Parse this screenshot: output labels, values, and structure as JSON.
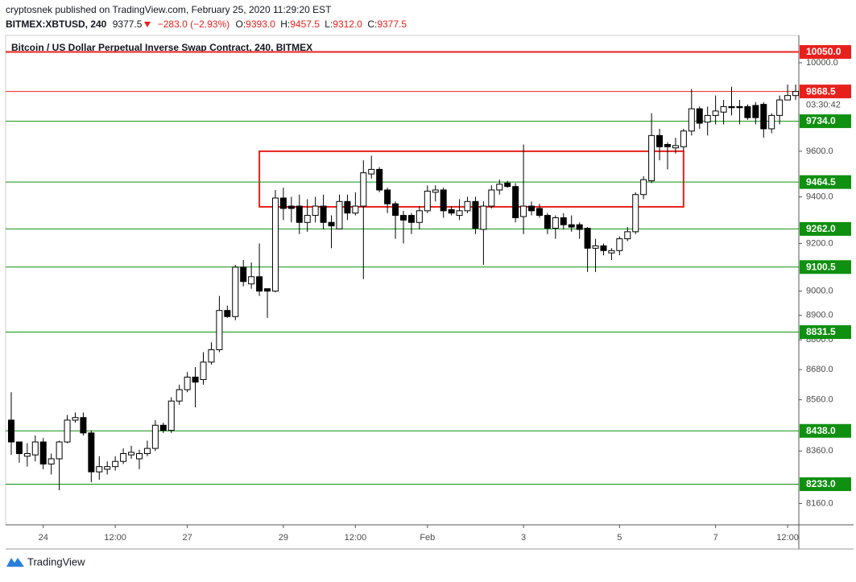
{
  "header": {
    "author_line": "cryptosnek published on TradingView.com, February 25, 2020 11:29:20 EST",
    "symbol": "BITMEX:XBTUSD, 240",
    "last": "9377.5",
    "change": "−283.0 (−2.93%)",
    "ohlc": [
      {
        "label": "O:",
        "value": "9393.0"
      },
      {
        "label": "H:",
        "value": "9457.5"
      },
      {
        "label": "L:",
        "value": "9312.0"
      },
      {
        "label": "C:",
        "value": "9377.5"
      }
    ]
  },
  "chart_data": {
    "type": "candlestick",
    "title": "Bitcoin / US Dollar Perpetual Inverse Swap Contract, 240, BITMEX",
    "log_scale": true,
    "grid": false,
    "up_color": "#ffffff",
    "down_color": "#000000",
    "border_color": "#000000",
    "xlim": [
      -0.7,
      98.4
    ],
    "xticks": [
      {
        "value": 4,
        "label": "24"
      },
      {
        "value": 13,
        "label": "12:00"
      },
      {
        "value": 22,
        "label": "27"
      },
      {
        "value": 34,
        "label": "29"
      },
      {
        "value": 43,
        "label": "12:00"
      },
      {
        "value": 52,
        "label": "Feb"
      },
      {
        "value": 64,
        "label": "3"
      },
      {
        "value": 76,
        "label": "5"
      },
      {
        "value": 88,
        "label": "7"
      },
      {
        "value": 97,
        "label": "12:00"
      }
    ],
    "ylim": [
      8080,
      10127
    ],
    "yticks": [
      {
        "value": 10000,
        "label": "10000.0"
      },
      {
        "value": 9600,
        "label": "9600.0"
      },
      {
        "value": 9400,
        "label": "9400.0"
      },
      {
        "value": 9200,
        "label": "9200.0"
      },
      {
        "value": 9000,
        "label": "9000.0"
      },
      {
        "value": 8900,
        "label": "8900.0"
      },
      {
        "value": 8800,
        "label": "8800.0"
      },
      {
        "value": 8680,
        "label": "8680.0"
      },
      {
        "value": 8560,
        "label": "8560.0"
      },
      {
        "value": 8360,
        "label": "8360.0"
      },
      {
        "value": 8160,
        "label": "8160.0"
      }
    ],
    "levels": [
      {
        "value": 10050,
        "label": "10050.0",
        "color": "#e8201c"
      },
      {
        "value": 9868.5,
        "label": "9868.5",
        "color": "#e8201c"
      },
      {
        "value": 9734,
        "label": "9734.0",
        "color": "#109010"
      },
      {
        "value": 9464.5,
        "label": "9464.5",
        "color": "#109010"
      },
      {
        "value": 9262,
        "label": "9262.0",
        "color": "#109010"
      },
      {
        "value": 9100.5,
        "label": "9100.5",
        "color": "#109010"
      },
      {
        "value": 8831.5,
        "label": "8831.5",
        "color": "#109010"
      },
      {
        "value": 8438,
        "label": "8438.0",
        "color": "#109010"
      },
      {
        "value": 8233,
        "label": "8233.0",
        "color": "#109010"
      }
    ],
    "countdown": "03:30:42",
    "range_box": {
      "x": [
        31,
        84
      ],
      "y": [
        9357,
        9600
      ],
      "color": "#e8201c"
    },
    "open": [
      8480,
      8395,
      8340,
      8345,
      8395,
      8310,
      8330,
      8395,
      8480,
      8490,
      8430,
      8280,
      8290,
      8300,
      8320,
      8345,
      8330,
      8350,
      8370,
      8460,
      8440,
      8555,
      8600,
      8650,
      8640,
      8710,
      8760,
      8920,
      8895,
      9100,
      9030,
      9060,
      9010,
      9000,
      9395,
      9360,
      9360,
      9290,
      9320,
      9360,
      9290,
      9262,
      9380,
      9330,
      9360,
      9500,
      9520,
      9430,
      9370,
      9320,
      9320,
      9290,
      9340,
      9420,
      9430,
      9345,
      9320,
      9340,
      9380,
      9260,
      9360,
      9430,
      9460,
      9445,
      9315,
      9360,
      9350,
      9320,
      9265,
      9310,
      9280,
      9280,
      9265,
      9180,
      9190,
      9160,
      9170,
      9220,
      9250,
      9410,
      9470,
      9670,
      9630,
      9615,
      9620,
      9690,
      9790,
      9730,
      9760,
      9775,
      9800,
      9800,
      9800,
      9805,
      9810,
      9700,
      9760,
      9830,
      9850
    ],
    "high": [
      8590,
      8390,
      8390,
      8420,
      8410,
      8350,
      8400,
      8500,
      8510,
      8510,
      8440,
      8340,
      8320,
      8340,
      8370,
      8380,
      8365,
      8400,
      8480,
      8470,
      8570,
      8620,
      8670,
      8690,
      8750,
      8790,
      8980,
      8940,
      9110,
      9130,
      9120,
      9200,
      9010,
      9430,
      9440,
      9400,
      9410,
      9390,
      9400,
      9410,
      9320,
      9410,
      9410,
      9420,
      9560,
      9580,
      9530,
      9440,
      9380,
      9340,
      9330,
      9360,
      9450,
      9450,
      9440,
      9360,
      9390,
      9400,
      9400,
      9380,
      9450,
      9475,
      9470,
      9460,
      9630,
      9380,
      9370,
      9330,
      9320,
      9330,
      9320,
      9290,
      9270,
      9220,
      9200,
      9180,
      9230,
      9270,
      9420,
      9490,
      9770,
      9700,
      9640,
      9660,
      9700,
      9880,
      9800,
      9800,
      9850,
      9830,
      9890,
      9830,
      9810,
      9820,
      9820,
      9770,
      9850,
      9900,
      9900
    ],
    "low": [
      8345,
      8315,
      8300,
      8320,
      8290,
      8270,
      8210,
      8390,
      8470,
      8420,
      8240,
      8250,
      8270,
      8285,
      8310,
      8330,
      8290,
      8340,
      8360,
      8430,
      8430,
      8540,
      8590,
      8530,
      8620,
      8700,
      8750,
      8890,
      8880,
      9020,
      9010,
      8980,
      8890,
      8995,
      9300,
      9290,
      9240,
      9250,
      9290,
      9260,
      9180,
      9260,
      9300,
      9320,
      9050,
      9480,
      9420,
      9330,
      9220,
      9200,
      9240,
      9260,
      9330,
      9380,
      9310,
      9320,
      9300,
      9330,
      9240,
      9110,
      9350,
      9410,
      9440,
      9290,
      9240,
      9320,
      9310,
      9240,
      9220,
      9260,
      9250,
      9220,
      9080,
      9080,
      9150,
      9130,
      9150,
      9210,
      9240,
      9390,
      9460,
      9560,
      9520,
      9590,
      9600,
      9670,
      9700,
      9670,
      9720,
      9720,
      9760,
      9720,
      9740,
      9720,
      9660,
      9680,
      9720,
      9830,
      9830
    ],
    "close": [
      8395,
      8350,
      8350,
      8395,
      8310,
      8330,
      8395,
      8480,
      8490,
      8430,
      8280,
      8300,
      8300,
      8320,
      8350,
      8355,
      8350,
      8370,
      8460,
      8440,
      8555,
      8600,
      8650,
      8630,
      8710,
      8760,
      8920,
      8895,
      9100,
      9040,
      9060,
      9000,
      9000,
      9395,
      9350,
      9350,
      9290,
      9320,
      9360,
      9290,
      9275,
      9380,
      9330,
      9360,
      9505,
      9520,
      9430,
      9370,
      9320,
      9300,
      9290,
      9340,
      9425,
      9430,
      9340,
      9330,
      9340,
      9380,
      9265,
      9360,
      9430,
      9455,
      9445,
      9310,
      9360,
      9340,
      9320,
      9265,
      9310,
      9280,
      9270,
      9260,
      9180,
      9190,
      9170,
      9170,
      9220,
      9250,
      9410,
      9475,
      9670,
      9620,
      9620,
      9625,
      9690,
      9790,
      9725,
      9760,
      9780,
      9800,
      9795,
      9795,
      9750,
      9750,
      9700,
      9760,
      9830,
      9850,
      9868.5
    ]
  },
  "footer": {
    "brand": "TradingView"
  }
}
